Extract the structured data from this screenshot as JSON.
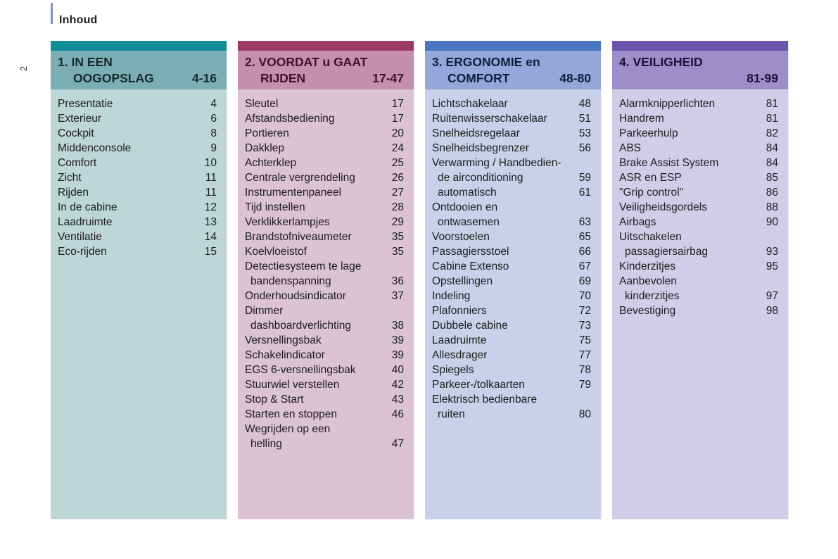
{
  "page": {
    "header_label": "Inhoud",
    "side_page_number": "2",
    "accent_bar_color": "#7e91b8"
  },
  "columns": [
    {
      "id": "in-een-oogopslag",
      "strip_color": "#0e8c97",
      "header_bg": "#7baeb4",
      "body_bg": "#bdd7d7",
      "ink": "#17292c",
      "title_line1": "1. IN EEN",
      "title_line2": "OOGOPSLAG",
      "page_range": "4-16",
      "items": [
        {
          "label": "Presentatie",
          "page": "4"
        },
        {
          "label": "Exterieur",
          "page": "6"
        },
        {
          "label": "Cockpit",
          "page": "8"
        },
        {
          "label": "Middenconsole",
          "page": "9"
        },
        {
          "label": "Comfort",
          "page": "10"
        },
        {
          "label": "Zicht",
          "page": "11"
        },
        {
          "label": "Rijden",
          "page": "11"
        },
        {
          "label": "In de cabine",
          "page": "12"
        },
        {
          "label": "Laadruimte",
          "page": "13"
        },
        {
          "label": "Ventilatie",
          "page": "14"
        },
        {
          "label": "Eco-rijden",
          "page": "15"
        }
      ]
    },
    {
      "id": "voordat-u-gaat-rijden",
      "strip_color": "#9d3b65",
      "header_bg": "#c48faa",
      "body_bg": "#dcc3d2",
      "ink": "#420e2d",
      "title_line1": "2. VOORDAT u GAAT",
      "title_line2": "RIJDEN",
      "page_range": "17-47",
      "items": [
        {
          "label": "Sleutel",
          "page": "17"
        },
        {
          "label": "Afstandsbediening",
          "page": "17"
        },
        {
          "label": "Portieren",
          "page": "20"
        },
        {
          "label": "Dakklep",
          "page": "24"
        },
        {
          "label": "Achterklep",
          "page": "25"
        },
        {
          "label": "Centrale vergrendeling",
          "page": "26"
        },
        {
          "label": "Instrumentenpaneel",
          "page": "27"
        },
        {
          "label": "Tijd instellen",
          "page": "28"
        },
        {
          "label": "Verklikkerlampjes",
          "page": "29"
        },
        {
          "label": "Brandstofniveaumeter",
          "page": "35"
        },
        {
          "label": "Koelvloeistof",
          "page": "35"
        },
        {
          "label": "Detectiesysteem te lage",
          "page": ""
        },
        {
          "label": "bandenspanning",
          "page": "36",
          "indent": true
        },
        {
          "label": "Onderhoudsindicator",
          "page": "37"
        },
        {
          "label": "Dimmer",
          "page": ""
        },
        {
          "label": "dashboardverlichting",
          "page": "38",
          "indent": true
        },
        {
          "label": "Versnellingsbak",
          "page": "39"
        },
        {
          "label": "Schakelindicator",
          "page": "39"
        },
        {
          "label": "EGS 6-versnellingsbak",
          "page": "40"
        },
        {
          "label": "Stuurwiel verstellen",
          "page": "42"
        },
        {
          "label": "Stop & Start",
          "page": "43"
        },
        {
          "label": "Starten en stoppen",
          "page": "46"
        },
        {
          "label": "Wegrijden op een",
          "page": ""
        },
        {
          "label": "helling",
          "page": "47",
          "indent": true
        }
      ]
    },
    {
      "id": "ergonomie-en-comfort",
      "strip_color": "#4c75c2",
      "header_bg": "#93a7da",
      "body_bg": "#c9d1ea",
      "ink": "#101e3c",
      "title_line1": "3. ERGONOMIE en",
      "title_line2": "COMFORT",
      "page_range": "48-80",
      "items": [
        {
          "label": "Lichtschakelaar",
          "page": "48"
        },
        {
          "label": "Ruitenwisserschakelaar",
          "page": "51"
        },
        {
          "label": "Snelheidsregelaar",
          "page": "53"
        },
        {
          "label": "Snelheidsbegrenzer",
          "page": "56"
        },
        {
          "label": "Verwarming / Handbedien-",
          "page": ""
        },
        {
          "label": "de airconditioning",
          "page": "59",
          "indent": true
        },
        {
          "label": "automatisch",
          "page": "61",
          "indent": true
        },
        {
          "label": "Ontdooien en",
          "page": ""
        },
        {
          "label": "ontwasemen",
          "page": "63",
          "indent": true
        },
        {
          "label": "Voorstoelen",
          "page": "65"
        },
        {
          "label": "Passagiersstoel",
          "page": "66"
        },
        {
          "label": "Cabine Extenso",
          "page": "67"
        },
        {
          "label": "Opstellingen",
          "page": "69"
        },
        {
          "label": "Indeling",
          "page": "70"
        },
        {
          "label": "Plafonniers",
          "page": "72"
        },
        {
          "label": "Dubbele cabine",
          "page": "73"
        },
        {
          "label": "Laadruimte",
          "page": "75"
        },
        {
          "label": "Allesdrager",
          "page": "77"
        },
        {
          "label": "Spiegels",
          "page": "78"
        },
        {
          "label": "Parkeer-/tolkaarten",
          "page": "79"
        },
        {
          "label": "Elektrisch bedienbare",
          "page": ""
        },
        {
          "label": "ruiten",
          "page": "80",
          "indent": true
        }
      ]
    },
    {
      "id": "veiligheid",
      "strip_color": "#6955a9",
      "header_bg": "#9c8ec9",
      "body_bg": "#d3cce9",
      "ink": "#1b1238",
      "title_line1": "4. VEILIGHEID",
      "title_line2": "",
      "page_range": "81-99",
      "items": [
        {
          "label": "Alarmknipperlichten",
          "page": "81"
        },
        {
          "label": "Handrem",
          "page": "81"
        },
        {
          "label": "Parkeerhulp",
          "page": "82"
        },
        {
          "label": "ABS",
          "page": "84"
        },
        {
          "label": "Brake Assist System",
          "page": "84"
        },
        {
          "label": "ASR en ESP",
          "page": "85"
        },
        {
          "label": "\"Grip control\"",
          "page": "86"
        },
        {
          "label": "Veiligheidsgordels",
          "page": "88"
        },
        {
          "label": "Airbags",
          "page": "90"
        },
        {
          "label": "Uitschakelen",
          "page": ""
        },
        {
          "label": "passagiersairbag",
          "page": "93",
          "indent": true
        },
        {
          "label": "Kinderzitjes",
          "page": "95"
        },
        {
          "label": "Aanbevolen",
          "page": ""
        },
        {
          "label": "kinderzitjes",
          "page": "97",
          "indent": true
        },
        {
          "label": "Bevestiging",
          "page": "98"
        }
      ]
    }
  ]
}
